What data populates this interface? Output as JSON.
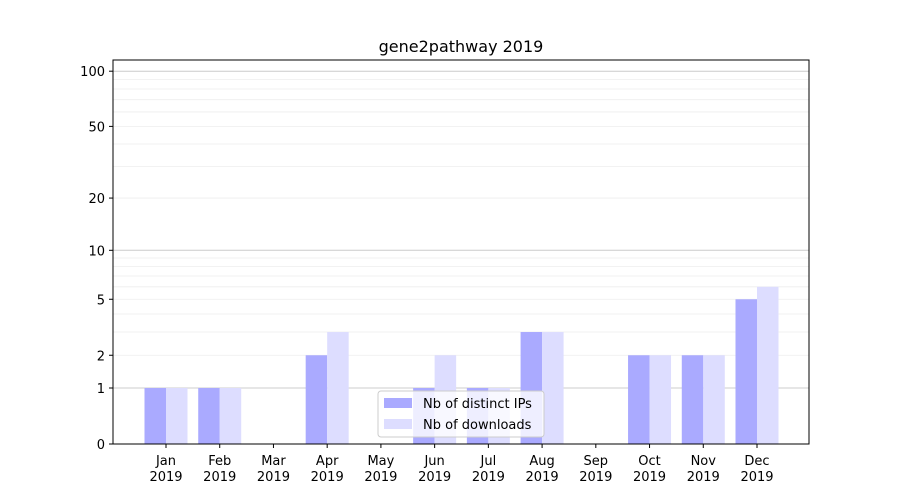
{
  "chart_data": {
    "type": "bar",
    "title": "gene2pathway 2019",
    "xlabel": "",
    "ylabel": "",
    "yscale": "symlog",
    "ylim": [
      0,
      114
    ],
    "grid": true,
    "legend_position": "lower-center",
    "categories": [
      [
        "Jan",
        "2019"
      ],
      [
        "Feb",
        "2019"
      ],
      [
        "Mar",
        "2019"
      ],
      [
        "Apr",
        "2019"
      ],
      [
        "May",
        "2019"
      ],
      [
        "Jun",
        "2019"
      ],
      [
        "Jul",
        "2019"
      ],
      [
        "Aug",
        "2019"
      ],
      [
        "Sep",
        "2019"
      ],
      [
        "Oct",
        "2019"
      ],
      [
        "Nov",
        "2019"
      ],
      [
        "Dec",
        "2019"
      ]
    ],
    "yticks": [
      0,
      1,
      2,
      5,
      10,
      20,
      50,
      100
    ],
    "ytick_labels": [
      "0",
      "1",
      "2",
      "5",
      "10",
      "20",
      "50",
      "100"
    ],
    "series": [
      {
        "name": "Nb of distinct IPs",
        "color": "#aaaaff",
        "values": [
          1,
          1,
          0,
          2,
          0,
          1,
          1,
          3,
          0,
          2,
          2,
          5
        ]
      },
      {
        "name": "Nb of downloads",
        "color": "#ddddff",
        "values": [
          1,
          1,
          0,
          3,
          0,
          2,
          1,
          3,
          0,
          2,
          2,
          6
        ]
      }
    ]
  }
}
